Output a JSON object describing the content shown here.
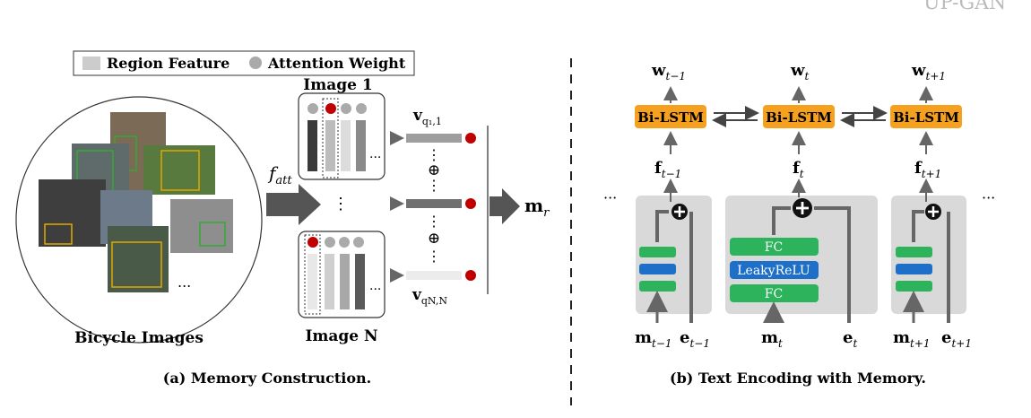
{
  "header_fragment": "UP-GAN",
  "panel_a": {
    "legend": {
      "region_feature": "Region Feature",
      "attention_weight": "Attention Weight"
    },
    "collage_caption": "Bicycle Images",
    "collage_ellipsis": "...",
    "f_att": {
      "base": "f",
      "sub": "att"
    },
    "image_1_label": "Image 1",
    "image_n_label": "Image N",
    "row_ellipsis": "...",
    "vertical_ellipsis": "⋮",
    "v_q1": {
      "base": "v",
      "sub": "q₁,1"
    },
    "v_qn": {
      "base": "v",
      "sub": "qN,N"
    },
    "oplus": "⊕",
    "m_r": {
      "base": "m",
      "sub": "r"
    },
    "caption": "(a) Memory  Construction."
  },
  "panel_b": {
    "bilstm_label": "Bi-LSTM",
    "w": {
      "base": "w",
      "subs": [
        "t−1",
        "t",
        "t+1"
      ]
    },
    "f": {
      "base": "f",
      "subs": [
        "t−1",
        "t",
        "t+1"
      ]
    },
    "m": {
      "base": "m",
      "subs": [
        "t−1",
        "t",
        "t+1"
      ]
    },
    "e": {
      "base": "e",
      "subs": [
        "t−1",
        "t",
        "t+1"
      ]
    },
    "fc_label": "FC",
    "leakyrelu_label": "LeakyReLU",
    "ellipsis": "···",
    "caption": "(b) Text Encoding with Memory."
  },
  "colors": {
    "orange": "#F5A01E",
    "green": "#2DB35C",
    "blue": "#1E6FC8",
    "panel_gray": "#D9D9D9",
    "arrow_gray": "#666666",
    "red_dot": "#C00000"
  }
}
